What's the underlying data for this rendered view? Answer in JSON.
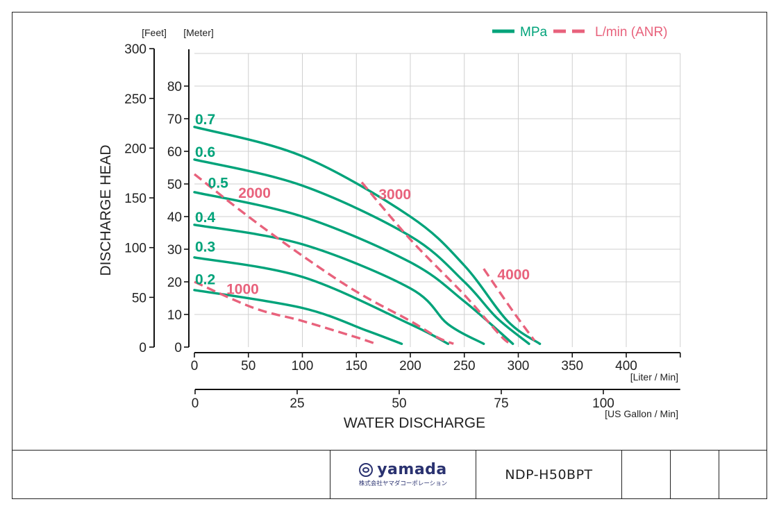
{
  "chart_data": {
    "type": "line",
    "x_axis_liter": {
      "ticks": [
        0,
        50,
        100,
        150,
        200,
        250,
        300,
        350,
        400
      ],
      "unit": "[Liter / Min]",
      "range": [
        0,
        450
      ]
    },
    "x_axis_gallon": {
      "ticks": [
        0,
        25,
        50,
        75,
        100
      ],
      "unit": "[US Gallon / Min]"
    },
    "xlabel": "WATER DISCHARGE",
    "y_axis_feet": {
      "ticks": [
        0,
        50,
        100,
        150,
        200,
        250,
        300
      ],
      "unit": "[Feet]"
    },
    "y_axis_meter": {
      "ticks": [
        0,
        10,
        20,
        30,
        40,
        50,
        60,
        70,
        80
      ],
      "unit": "[Meter]",
      "range": [
        0,
        90
      ]
    },
    "ylabel": "DISCHARGE HEAD",
    "grid": true,
    "legend": {
      "position": "top-right",
      "items": [
        {
          "label": "MPa",
          "style": "solid",
          "color": "#00a37a"
        },
        {
          "label": "L/min (ANR)",
          "style": "dashed",
          "color": "#e8627c"
        }
      ]
    },
    "series": [
      {
        "name": "0.7",
        "kind": "MPa",
        "points": [
          [
            0,
            67.5
          ],
          [
            100,
            58.5
          ],
          [
            200,
            40
          ],
          [
            250,
            25
          ],
          [
            290,
            8
          ],
          [
            320,
            1
          ]
        ]
      },
      {
        "name": "0.6",
        "kind": "MPa",
        "points": [
          [
            0,
            57.5
          ],
          [
            100,
            49.5
          ],
          [
            200,
            34
          ],
          [
            250,
            20
          ],
          [
            280,
            9
          ],
          [
            310,
            1
          ]
        ]
      },
      {
        "name": "0.5",
        "kind": "MPa",
        "points": [
          [
            0,
            47.5
          ],
          [
            100,
            40
          ],
          [
            200,
            26
          ],
          [
            250,
            14
          ],
          [
            295,
            1
          ]
        ]
      },
      {
        "name": "0.4",
        "kind": "MPa",
        "points": [
          [
            0,
            37.5
          ],
          [
            100,
            31.5
          ],
          [
            200,
            18
          ],
          [
            235,
            7
          ],
          [
            268,
            1
          ]
        ]
      },
      {
        "name": "0.3",
        "kind": "MPa",
        "points": [
          [
            0,
            27.5
          ],
          [
            100,
            21.5
          ],
          [
            200,
            7
          ],
          [
            235,
            1
          ]
        ]
      },
      {
        "name": "0.2",
        "kind": "MPa",
        "points": [
          [
            0,
            17.5
          ],
          [
            100,
            12
          ],
          [
            160,
            5
          ],
          [
            192,
            1
          ]
        ]
      },
      {
        "name": "1000",
        "kind": "L/min (ANR)",
        "points": [
          [
            0,
            20
          ],
          [
            55,
            12
          ],
          [
            100,
            8
          ],
          [
            150,
            3
          ],
          [
            168,
            1
          ]
        ]
      },
      {
        "name": "2000",
        "kind": "L/min (ANR)",
        "points": [
          [
            0,
            53
          ],
          [
            50,
            40
          ],
          [
            100,
            28
          ],
          [
            150,
            17
          ],
          [
            200,
            8
          ],
          [
            225,
            3
          ],
          [
            240,
            1
          ]
        ]
      },
      {
        "name": "3000",
        "kind": "L/min (ANR)",
        "points": [
          [
            155,
            50.5
          ],
          [
            200,
            33
          ],
          [
            250,
            16
          ],
          [
            285,
            3
          ],
          [
            295,
            1
          ]
        ]
      },
      {
        "name": "4000",
        "kind": "L/min (ANR)",
        "points": [
          [
            268,
            24
          ],
          [
            295,
            11
          ],
          [
            315,
            2
          ]
        ]
      }
    ],
    "label_positions": {
      "0.7": [
        0,
        70
      ],
      "0.6": [
        0,
        60
      ],
      "0.5": [
        12,
        50.5
      ],
      "0.4": [
        0,
        40
      ],
      "0.3": [
        0,
        31
      ],
      "0.2": [
        0,
        21
      ],
      "2000": [
        40,
        47.5
      ],
      "3000": [
        170,
        47
      ],
      "1000": [
        29,
        18
      ],
      "4000": [
        280,
        22.5
      ]
    }
  },
  "title_block": {
    "brand": "yamada",
    "brand_subtitle": "株式会社ヤマダコーポレーション",
    "model": "NDP-H50BPT"
  },
  "colors": {
    "mpa": "#00a37a",
    "flow": "#e8627c",
    "brand": "#2a3270"
  }
}
